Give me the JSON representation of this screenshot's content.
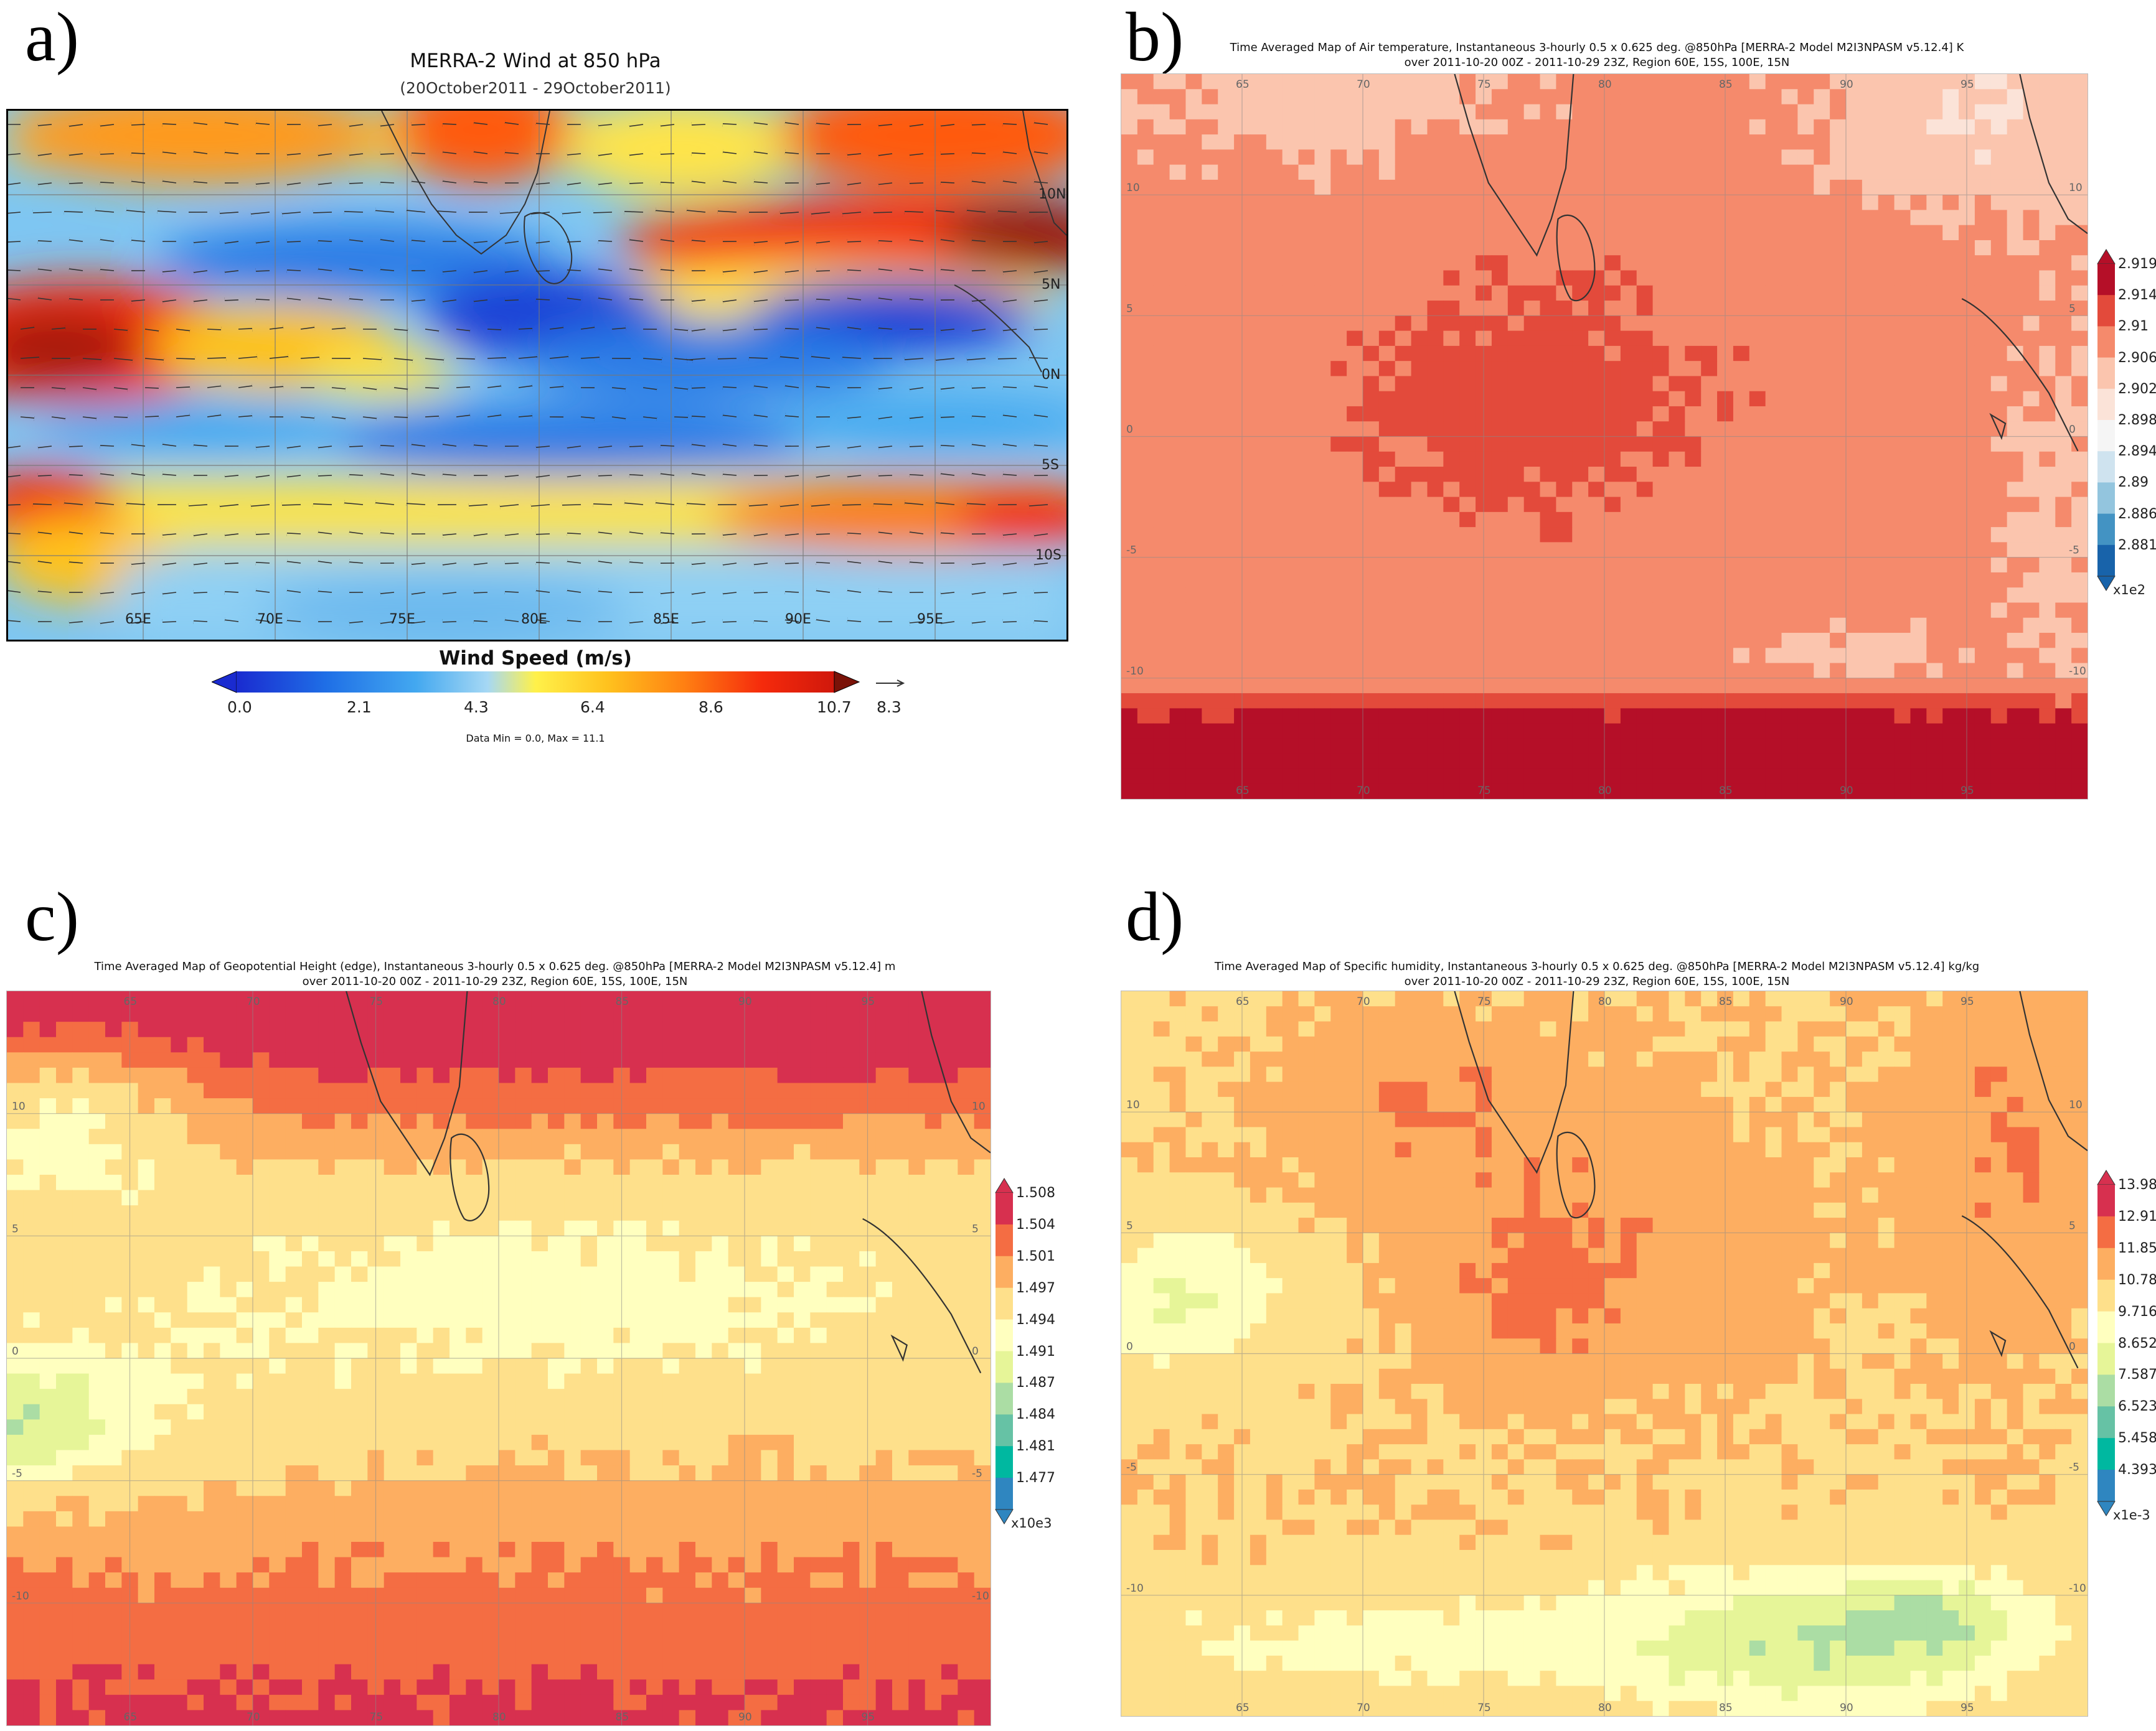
{
  "panel_a": {
    "letter": "a)",
    "title": "MERRA-2 Wind at 850 hPa",
    "subtitle": "(20October2011 - 29October2011)",
    "lon_labels": [
      "65E",
      "70E",
      "75E",
      "80E",
      "85E",
      "90E",
      "95E"
    ],
    "lat_labels": [
      "10N",
      "5N",
      "0N",
      "5S",
      "10S"
    ],
    "colorbar": {
      "title": "Wind Speed (m/s)",
      "ticks": [
        "0.0",
        "2.1",
        "4.3",
        "6.4",
        "8.6",
        "10.7"
      ],
      "vector_ref": "8.3",
      "stats": "Data Min = 0.0, Max = 11.1",
      "colors": [
        "#1a2bd0",
        "#1f6fe6",
        "#43a8f0",
        "#a6d8f4",
        "#fff14a",
        "#ffc21e",
        "#ff7f12",
        "#f52a0c",
        "#7a1208"
      ]
    }
  },
  "panel_b": {
    "letter": "b)",
    "title": "Time Averaged Map of Air temperature, Instantaneous 3-hourly 0.5 x 0.625 deg. @850hPa [MERRA-2 Model M2I3NPASM v5.12.4] K",
    "subtitle": "over 2011-10-20 00Z - 2011-10-29 23Z, Region 60E, 15S, 100E, 15N",
    "colorbar": {
      "ticks": [
        "2.919",
        "2.914",
        "2.91",
        "2.906",
        "2.902",
        "2.898",
        "2.894",
        "2.89",
        "2.886",
        "2.881"
      ],
      "unit": "x1e2",
      "colors": [
        "#b50f28",
        "#e34a3b",
        "#f58a6c",
        "#fbc5ae",
        "#fbe3d8",
        "#f5f5f5",
        "#cfe3ef",
        "#93c5de",
        "#4393c3",
        "#1863aa"
      ]
    }
  },
  "panel_c": {
    "letter": "c)",
    "title": "Time Averaged Map of Geopotential Height (edge), Instantaneous 3-hourly 0.5 x 0.625 deg. @850hPa [MERRA-2 Model M2I3NPASM v5.12.4] m",
    "subtitle": "over 2011-10-20 00Z - 2011-10-29 23Z, Region 60E, 15S, 100E, 15N",
    "colorbar": {
      "ticks": [
        "1.508",
        "1.504",
        "1.501",
        "1.497",
        "1.494",
        "1.491",
        "1.487",
        "1.484",
        "1.481",
        "1.477"
      ],
      "unit": "x10e3",
      "colors": [
        "#d7304f",
        "#f46d43",
        "#fdae61",
        "#fee08b",
        "#ffffbf",
        "#e6f598",
        "#abdda4",
        "#66c2a5",
        "#00b8a0",
        "#2f86c0"
      ]
    }
  },
  "panel_d": {
    "letter": "d)",
    "title": "Time Averaged Map of Specific humidity, Instantaneous 3-hourly 0.5 x 0.625 deg. @850hPa [MERRA-2 Model M2I3NPASM v5.12.4] kg/kg",
    "subtitle": "over 2011-10-20 00Z - 2011-10-29 23Z, Region 60E, 15S, 100E, 15N",
    "colorbar": {
      "ticks": [
        "13.98",
        "12.91",
        "11.85",
        "10.78",
        "9.716",
        "8.652",
        "7.587",
        "6.523",
        "5.458",
        "4.393"
      ],
      "unit": "x1e-3",
      "colors": [
        "#d7304f",
        "#f46d43",
        "#fdae61",
        "#fee08b",
        "#ffffbf",
        "#e6f598",
        "#abdda4",
        "#66c2a5",
        "#00b8a0",
        "#2f86c0"
      ]
    }
  },
  "grid_lon_labels": [
    "65",
    "70",
    "75",
    "80",
    "85",
    "90",
    "95"
  ],
  "grid_lat_labels": [
    "10",
    "5",
    "0",
    "-5",
    "-10"
  ]
}
